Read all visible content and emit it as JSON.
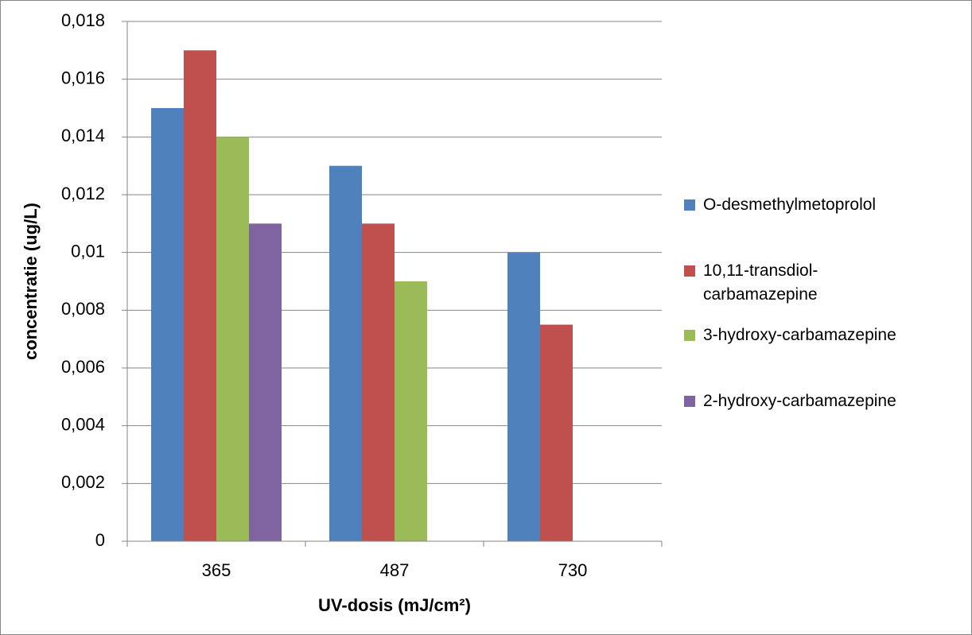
{
  "chart_data": {
    "type": "bar",
    "x_label": "UV-dosis (mJ/cm²)",
    "y_label": "concentratie (ug/L)",
    "categories": [
      "365",
      "487",
      "730"
    ],
    "series": [
      {
        "name": "O-desmethylmetoprolol",
        "color": "#4f81bd",
        "values": [
          0.015,
          0.013,
          0.01
        ]
      },
      {
        "name": "10,11-transdiol-carbamazepine",
        "color": "#c0504d",
        "values": [
          0.017,
          0.011,
          0.0075
        ]
      },
      {
        "name": "3-hydroxy-carbamazepine",
        "color": "#9bbb59",
        "values": [
          0.014,
          0.009,
          null
        ]
      },
      {
        "name": "2-hydroxy-carbamazepine",
        "color": "#8064a2",
        "values": [
          0.011,
          null,
          null
        ]
      }
    ],
    "ylim": [
      0,
      0.018
    ],
    "yticks": [
      0,
      {
        "value": 0.002,
        "label": "0,002"
      },
      {
        "value": 0.004,
        "label": "0,004"
      },
      {
        "value": 0.006,
        "label": "0,006"
      },
      {
        "value": 0.008,
        "label": "0,008"
      },
      {
        "value": 0.01,
        "label": "0,01"
      },
      {
        "value": 0.012,
        "label": "0,012"
      },
      {
        "value": 0.014,
        "label": "0,014"
      },
      {
        "value": 0.016,
        "label": "0,016"
      },
      {
        "value": 0.018,
        "label": "0,018"
      }
    ],
    "grid": true,
    "legend": "right"
  }
}
